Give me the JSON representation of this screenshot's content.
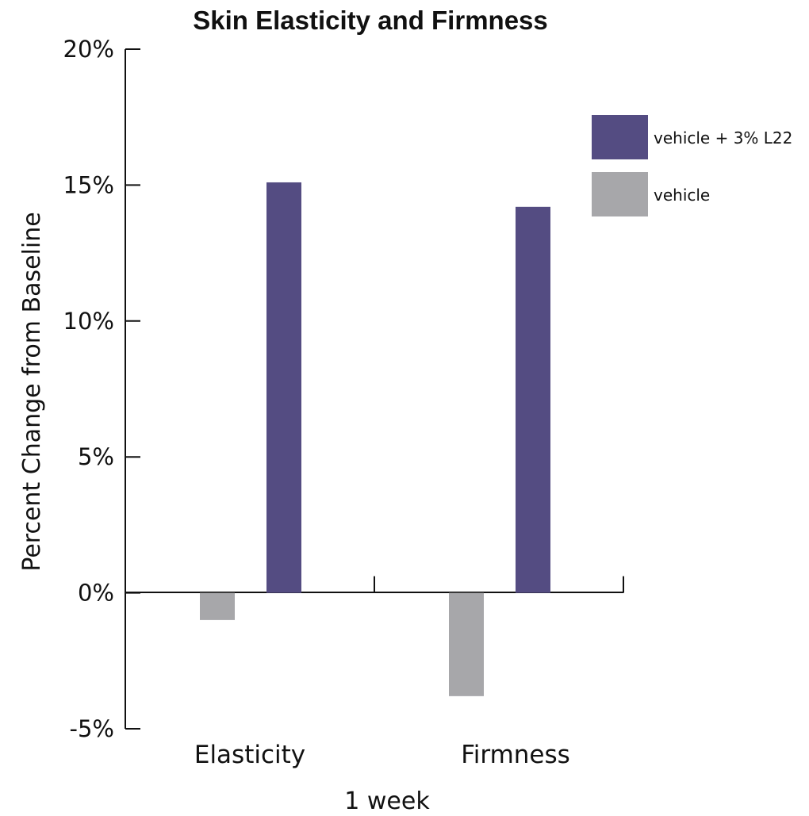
{
  "chart_data": {
    "type": "bar",
    "title": "Skin Elasticity and Firmness",
    "ylabel": "Percent Change from Baseline",
    "xlabel": "1 week",
    "categories": [
      "Elasticity",
      "Firmness"
    ],
    "series": [
      {
        "name": "vehicle",
        "color": "#a7a7aa",
        "values": [
          -1.0,
          -3.8
        ]
      },
      {
        "name": "vehicle + 3% L22",
        "color": "#544c82",
        "values": [
          15.1,
          14.2
        ]
      }
    ],
    "ylim": [
      -5,
      20
    ],
    "yticks": [
      20,
      15,
      10,
      5,
      0,
      -5
    ],
    "ytick_labels": [
      "20%",
      "15%",
      "10%",
      "5%",
      "0%",
      "-5%"
    ],
    "legend_position": "top-right",
    "legend_order": [
      "vehicle + 3% L22",
      "vehicle"
    ],
    "grid": false
  }
}
